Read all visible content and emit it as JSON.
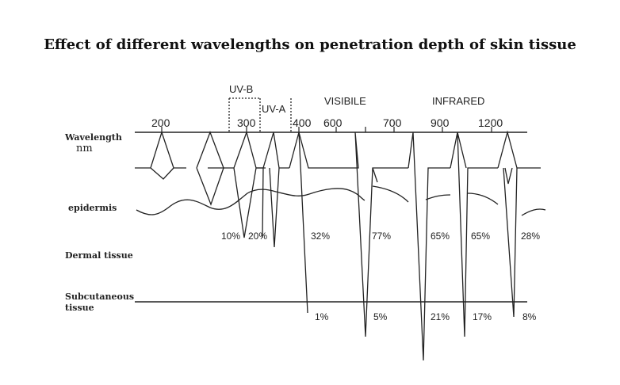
{
  "title": "Effect of different wavelengths on penetration depth of skin tissue",
  "bands": {
    "uvb": "UV-B",
    "uva": "UV-A",
    "visible": "VISIBILE",
    "infrared": "INFRARED"
  },
  "wavelengths": [
    "200",
    "300",
    "400",
    "600",
    "700",
    "900",
    "1200"
  ],
  "layers": {
    "wavelength": "Wavelength",
    "unit": "nm",
    "epidermis": "epidermis",
    "dermal": "Dermal tissue",
    "subcutaneous_line1": "Subcutaneous",
    "subcutaneous_line2": "tissue"
  },
  "dermal_pct": [
    "10%",
    "20%",
    "32%",
    "77%",
    "65%",
    "65%",
    "28%"
  ],
  "subcutaneous_pct": [
    "1%",
    "5%",
    "21%",
    "17%",
    "8%"
  ],
  "colors": {
    "line": "#222222",
    "background": "#ffffff"
  }
}
